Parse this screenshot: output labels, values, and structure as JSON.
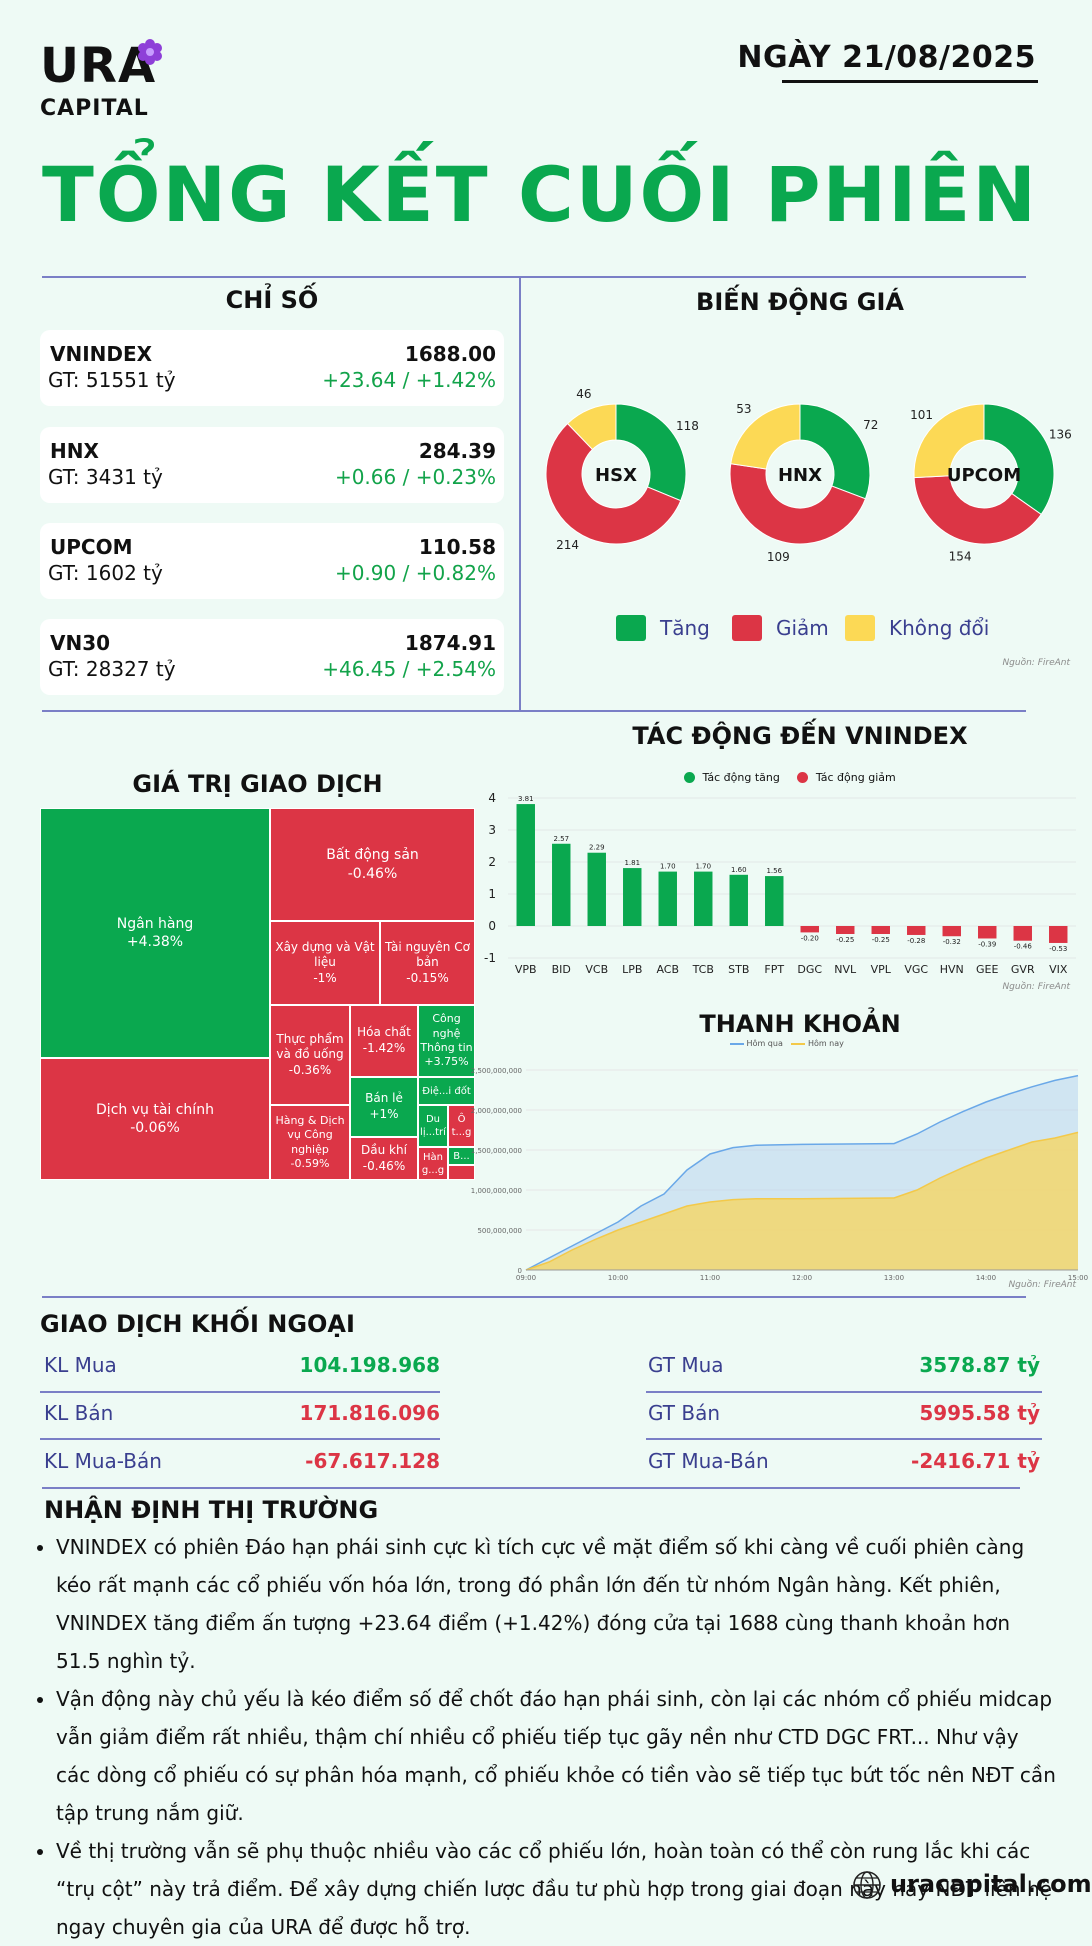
{
  "brand": {
    "name": "URA",
    "sub": "CAPITAL",
    "website": "uracapital.com"
  },
  "date": "NGÀY 21/08/2025",
  "title": "TỔNG KẾT CUỐI PHIÊN",
  "indices": {
    "title": "CHỈ SỐ",
    "items": [
      {
        "name": "VNINDEX",
        "gt": "GT: 51551 tỷ",
        "value": "1688.00",
        "change": "+23.64 / +1.42%"
      },
      {
        "name": "HNX",
        "gt": "GT: 3431 tỷ",
        "value": "284.39",
        "change": "+0.66 / +0.23%"
      },
      {
        "name": "UPCOM",
        "gt": "GT: 1602 tỷ",
        "value": "110.58",
        "change": "+0.90 / +0.82%"
      },
      {
        "name": "VN30",
        "gt": "GT: 28327 tỷ",
        "value": "1874.91",
        "change": "+46.45 / +2.54%"
      }
    ]
  },
  "colors": {
    "up": "#0aa84f",
    "down": "#dc3545",
    "flat": "#fcd955",
    "accent": "#0aa84f",
    "line": "#7a7fc6"
  },
  "price_movement": {
    "title": "BIẾN ĐỘNG GIÁ",
    "legend": [
      "Tăng",
      "Giảm",
      "Không đổi"
    ],
    "source": "Nguồn: FireAnt"
  },
  "impact": {
    "title": "TÁC ĐỘNG ĐẾN VNINDEX",
    "legend": [
      "Tác động tăng",
      "Tác động giảm"
    ],
    "source": "Nguồn: FireAnt"
  },
  "trade_value": {
    "title": "GIÁ TRỊ GIAO DỊCH"
  },
  "liquidity": {
    "title": "THANH KHOẢN",
    "legend": [
      "Hôm qua",
      "Hôm nay"
    ],
    "source": "Nguồn: FireAnt"
  },
  "chart_data": [
    {
      "type": "pie",
      "title": "HSX",
      "categories": [
        "Tăng",
        "Giảm",
        "Không đổi"
      ],
      "values": [
        118,
        214,
        46
      ],
      "labels": [
        "118",
        "214",
        "46"
      ]
    },
    {
      "type": "pie",
      "title": "HNX",
      "categories": [
        "Tăng",
        "Giảm",
        "Không đổi"
      ],
      "values": [
        72,
        109,
        53
      ],
      "labels": [
        "72",
        "109",
        "53"
      ]
    },
    {
      "type": "pie",
      "title": "UPCOM",
      "categories": [
        "Tăng",
        "Giảm",
        "Không đổi"
      ],
      "values": [
        136,
        154,
        101
      ],
      "labels": [
        "136",
        "154",
        "101"
      ]
    },
    {
      "type": "bar",
      "title": "TÁC ĐỘNG ĐẾN VNINDEX",
      "categories": [
        "VPB",
        "BID",
        "VCB",
        "LPB",
        "ACB",
        "TCB",
        "STB",
        "FPT",
        "DGC",
        "NVL",
        "VPL",
        "VGC",
        "HVN",
        "GEE",
        "GVR",
        "VIX"
      ],
      "values": [
        3.81,
        2.57,
        2.29,
        1.81,
        1.7,
        1.7,
        1.6,
        1.56,
        -0.2,
        -0.25,
        -0.25,
        -0.28,
        -0.32,
        -0.39,
        -0.46,
        -0.53
      ],
      "value_labels": [
        "3.81",
        "2.57",
        "2.29",
        "1.81",
        "1.70",
        "1.70",
        "1.60",
        "1.56",
        "-0.20",
        "-0.25",
        "-0.25",
        "-0.28",
        "-0.32",
        "-0.39",
        "-0.46",
        "-0.53"
      ],
      "ylim": [
        -1,
        4
      ],
      "yticks": [
        "4",
        "3",
        "2",
        "1",
        "0",
        "-1"
      ]
    },
    {
      "type": "area",
      "title": "THANH KHOẢN",
      "x_ticks": [
        "09:00",
        "10:00",
        "11:00",
        "12:00",
        "13:00",
        "14:00",
        "15:00"
      ],
      "y_ticks": [
        "2,500,000,000",
        "2,000,000,000",
        "1,500,000,000",
        "1,000,000,000",
        "500,000,000",
        "0"
      ],
      "ylim": [
        0,
        2500000000
      ],
      "series": [
        {
          "name": "Hôm qua",
          "x": [
            "09:00",
            "09:15",
            "09:30",
            "09:45",
            "10:00",
            "10:15",
            "10:30",
            "10:45",
            "11:00",
            "11:15",
            "11:30",
            "12:00",
            "13:00",
            "13:15",
            "13:30",
            "13:45",
            "14:00",
            "14:15",
            "14:30",
            "14:45",
            "15:00"
          ],
          "values": [
            0,
            150000000,
            300000000,
            450000000,
            600000000,
            800000000,
            950000000,
            1250000000,
            1450000000,
            1530000000,
            1560000000,
            1570000000,
            1580000000,
            1700000000,
            1850000000,
            1980000000,
            2100000000,
            2200000000,
            2290000000,
            2370000000,
            2430000000
          ]
        },
        {
          "name": "Hôm nay",
          "x": [
            "09:00",
            "09:15",
            "09:30",
            "09:45",
            "10:00",
            "10:15",
            "10:30",
            "10:45",
            "11:00",
            "11:15",
            "11:30",
            "12:00",
            "13:00",
            "13:15",
            "13:30",
            "13:45",
            "14:00",
            "14:15",
            "14:30",
            "14:45",
            "15:00"
          ],
          "values": [
            0,
            100000000,
            250000000,
            380000000,
            500000000,
            600000000,
            700000000,
            800000000,
            850000000,
            880000000,
            890000000,
            890000000,
            900000000,
            1000000000,
            1150000000,
            1280000000,
            1400000000,
            1500000000,
            1600000000,
            1650000000,
            1720000000
          ]
        }
      ]
    }
  ],
  "treemap": [
    {
      "name": "Ngân hàng",
      "change": "+4.38%",
      "dir": "up"
    },
    {
      "name": "Dịch vụ tài chính",
      "change": "-0.06%",
      "dir": "down"
    },
    {
      "name": "Bất động sản",
      "change": "-0.46%",
      "dir": "down"
    },
    {
      "name": "Xây dựng và Vật liệu",
      "change": "-1%",
      "dir": "down"
    },
    {
      "name": "Tài nguyên Cơ bản",
      "change": "-0.15%",
      "dir": "down"
    },
    {
      "name": "Thực phẩm và đồ uống",
      "change": "-0.36%",
      "dir": "down"
    },
    {
      "name": "Hóa chất",
      "change": "-1.42%",
      "dir": "down"
    },
    {
      "name": "Công nghệ Thông tin",
      "change": "+3.75%",
      "dir": "up"
    },
    {
      "name": "Hàng & Dịch vụ Công nghiệp",
      "change": "-0.59%",
      "dir": "down"
    },
    {
      "name": "Bán lẻ",
      "change": "+1%",
      "dir": "up"
    },
    {
      "name": "Dầu khí",
      "change": "-0.46%",
      "dir": "down"
    },
    {
      "name": "Điệ...i đốt",
      "change": "",
      "dir": "up"
    },
    {
      "name": "Du lị...trí",
      "change": "",
      "dir": "up"
    },
    {
      "name": "Ô t...g",
      "change": "",
      "dir": "down"
    },
    {
      "name": "Hàn g...g",
      "change": "",
      "dir": "down"
    },
    {
      "name": "B...",
      "change": "",
      "dir": "up"
    }
  ],
  "foreign": {
    "title": "GIAO DỊCH KHỐI NGOẠI",
    "left": [
      {
        "label": "KL Mua",
        "value": "104.198.968",
        "dir": "up"
      },
      {
        "label": "KL Bán",
        "value": "171.816.096",
        "dir": "down"
      },
      {
        "label": "KL Mua-Bán",
        "value": "-67.617.128",
        "dir": "down"
      }
    ],
    "right": [
      {
        "label": "GT Mua",
        "value": "3578.87 tỷ",
        "dir": "up"
      },
      {
        "label": "GT Bán",
        "value": "5995.58 tỷ",
        "dir": "down"
      },
      {
        "label": "GT Mua-Bán",
        "value": "-2416.71 tỷ",
        "dir": "down"
      }
    ]
  },
  "opinion": {
    "title": "NHẬN ĐỊNH THỊ TRƯỜNG",
    "items": [
      "VNINDEX có phiên Đáo hạn phái sinh cực kì tích cực về mặt điểm số khi càng về cuối phiên càng kéo rất mạnh các cổ phiếu vốn hóa lớn, trong đó phần lớn đến từ nhóm Ngân hàng. Kết phiên, VNINDEX tăng điểm ấn tượng +23.64 điểm (+1.42%) đóng cửa tại 1688 cùng thanh khoản hơn 51.5 nghìn tỷ.",
      "Vận động này chủ yếu là kéo điểm số để chốt đáo hạn phái sinh, còn lại các nhóm cổ phiếu midcap vẫn giảm điểm rất nhiều, thậm chí nhiều cổ phiếu tiếp tục gãy nền như CTD DGC FRT... Như vậy các dòng cổ phiếu có sự phân hóa mạnh, cổ phiếu khỏe có tiền vào sẽ tiếp tục bứt tốc nên NĐT cần tập trung nắm giữ.",
      "Về thị trường vẫn sẽ phụ thuộc nhiều vào các cổ phiếu lớn, hoàn toàn có thể còn rung lắc khi các “trụ cột” này trả điểm. Để xây dựng chiến lược đầu tư phù hợp trong giai đoạn này này NĐT liên hệ ngay chuyên gia của URA để được hỗ trợ."
    ]
  }
}
